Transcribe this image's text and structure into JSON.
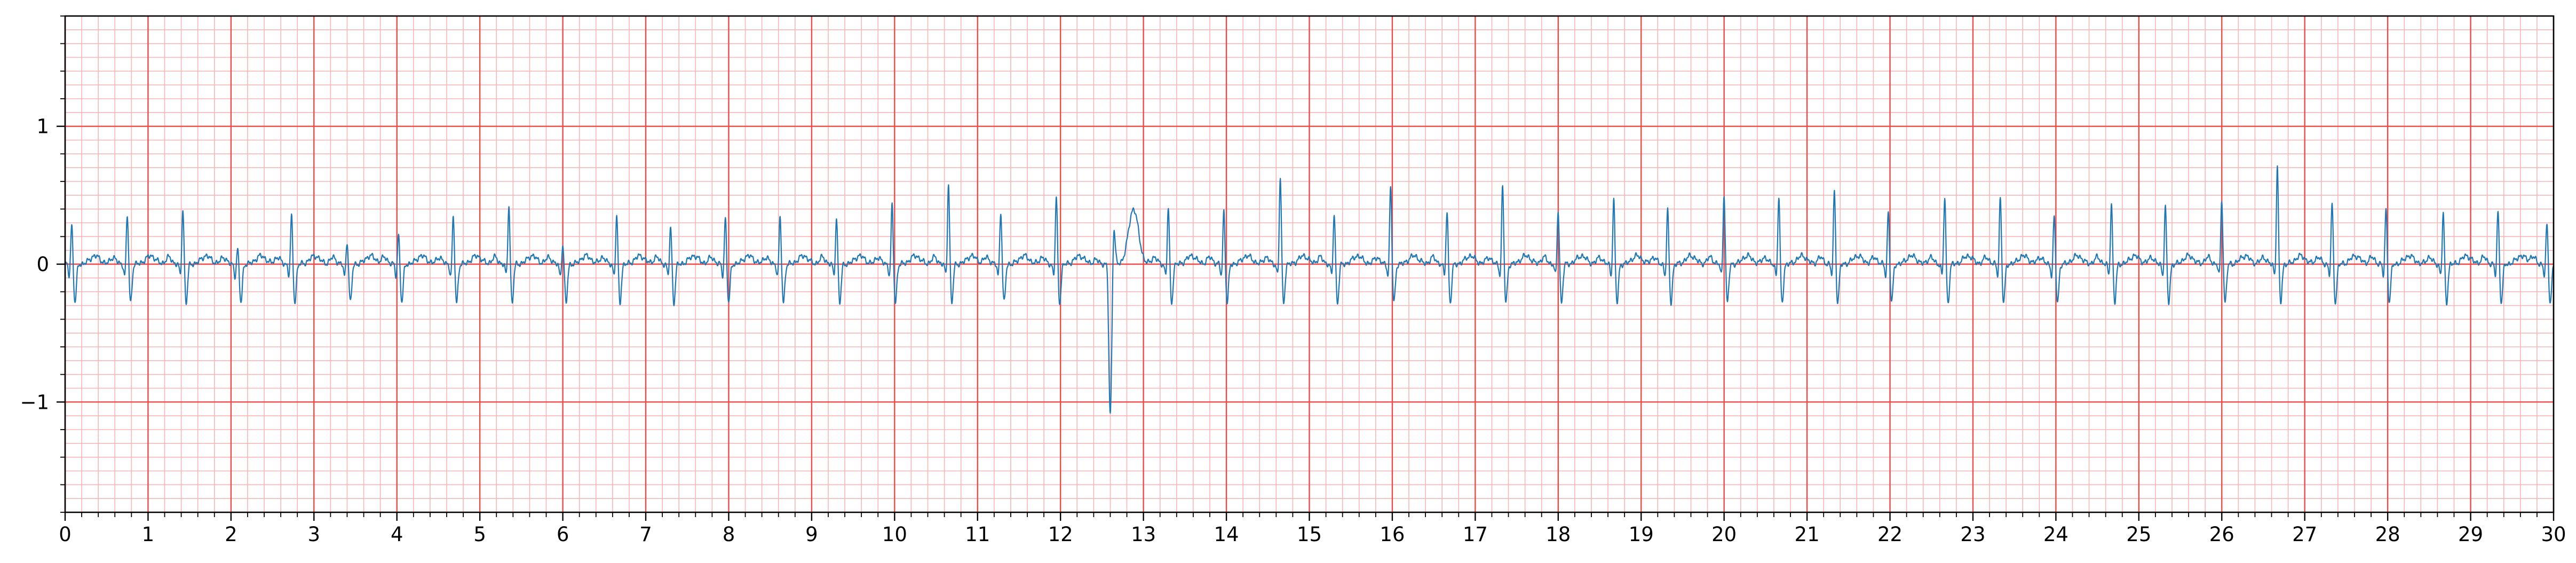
{
  "chart_data": {
    "type": "line",
    "title": "",
    "xlabel": "",
    "ylabel": "",
    "xlim": [
      0,
      30
    ],
    "ylim": [
      -1.8,
      1.8
    ],
    "x_ticks": [
      0,
      1,
      2,
      3,
      4,
      5,
      6,
      7,
      8,
      9,
      10,
      11,
      12,
      13,
      14,
      15,
      16,
      17,
      18,
      19,
      20,
      21,
      22,
      23,
      24,
      25,
      26,
      27,
      28,
      29,
      30
    ],
    "x_tick_labels": [
      "0",
      "1",
      "2",
      "3",
      "4",
      "5",
      "6",
      "7",
      "8",
      "9",
      "10",
      "11",
      "12",
      "13",
      "14",
      "15",
      "16",
      "17",
      "18",
      "19",
      "20",
      "21",
      "22",
      "23",
      "24",
      "25",
      "26",
      "27",
      "28",
      "29",
      "30"
    ],
    "y_ticks": [
      -1,
      0,
      1
    ],
    "y_tick_labels": [
      "−1",
      "0",
      "1"
    ],
    "grid": {
      "major_x_step": 1,
      "minor_x_step": 0.2,
      "major_y_step": 1,
      "minor_y_step": 0.1,
      "visible": true
    },
    "colors": {
      "major_grid": "#ef4a4a",
      "minor_grid": "#f7b6b6",
      "trace": "#1f77b4"
    },
    "series": [
      {
        "beats_x": [
          0.08,
          0.75,
          1.42,
          2.08,
          2.73,
          3.4,
          4.02,
          4.68,
          5.35,
          6.0,
          6.65,
          7.3,
          7.96,
          8.62,
          9.3,
          9.97,
          10.65,
          11.28,
          11.95,
          12.6,
          13.3,
          13.97,
          14.65,
          15.3,
          15.98,
          16.66,
          17.33,
          18.0,
          18.67,
          19.32,
          20.0,
          20.66,
          21.33,
          21.98,
          22.66,
          23.33,
          23.98,
          24.67,
          25.32,
          26.0,
          26.67,
          27.33,
          27.98,
          28.67,
          29.33,
          29.92
        ],
        "beats_r": [
          0.3,
          0.37,
          0.41,
          0.12,
          0.36,
          0.18,
          0.23,
          0.35,
          0.44,
          0.15,
          0.36,
          0.28,
          0.35,
          0.35,
          0.35,
          0.44,
          0.6,
          0.4,
          0.5,
          -1.1,
          0.42,
          0.4,
          0.64,
          0.38,
          0.58,
          0.4,
          0.58,
          0.4,
          0.48,
          0.4,
          0.52,
          0.5,
          0.55,
          0.4,
          0.5,
          0.5,
          0.36,
          0.45,
          0.43,
          0.48,
          0.72,
          0.45,
          0.42,
          0.38,
          0.4,
          0.3
        ]
      }
    ]
  }
}
